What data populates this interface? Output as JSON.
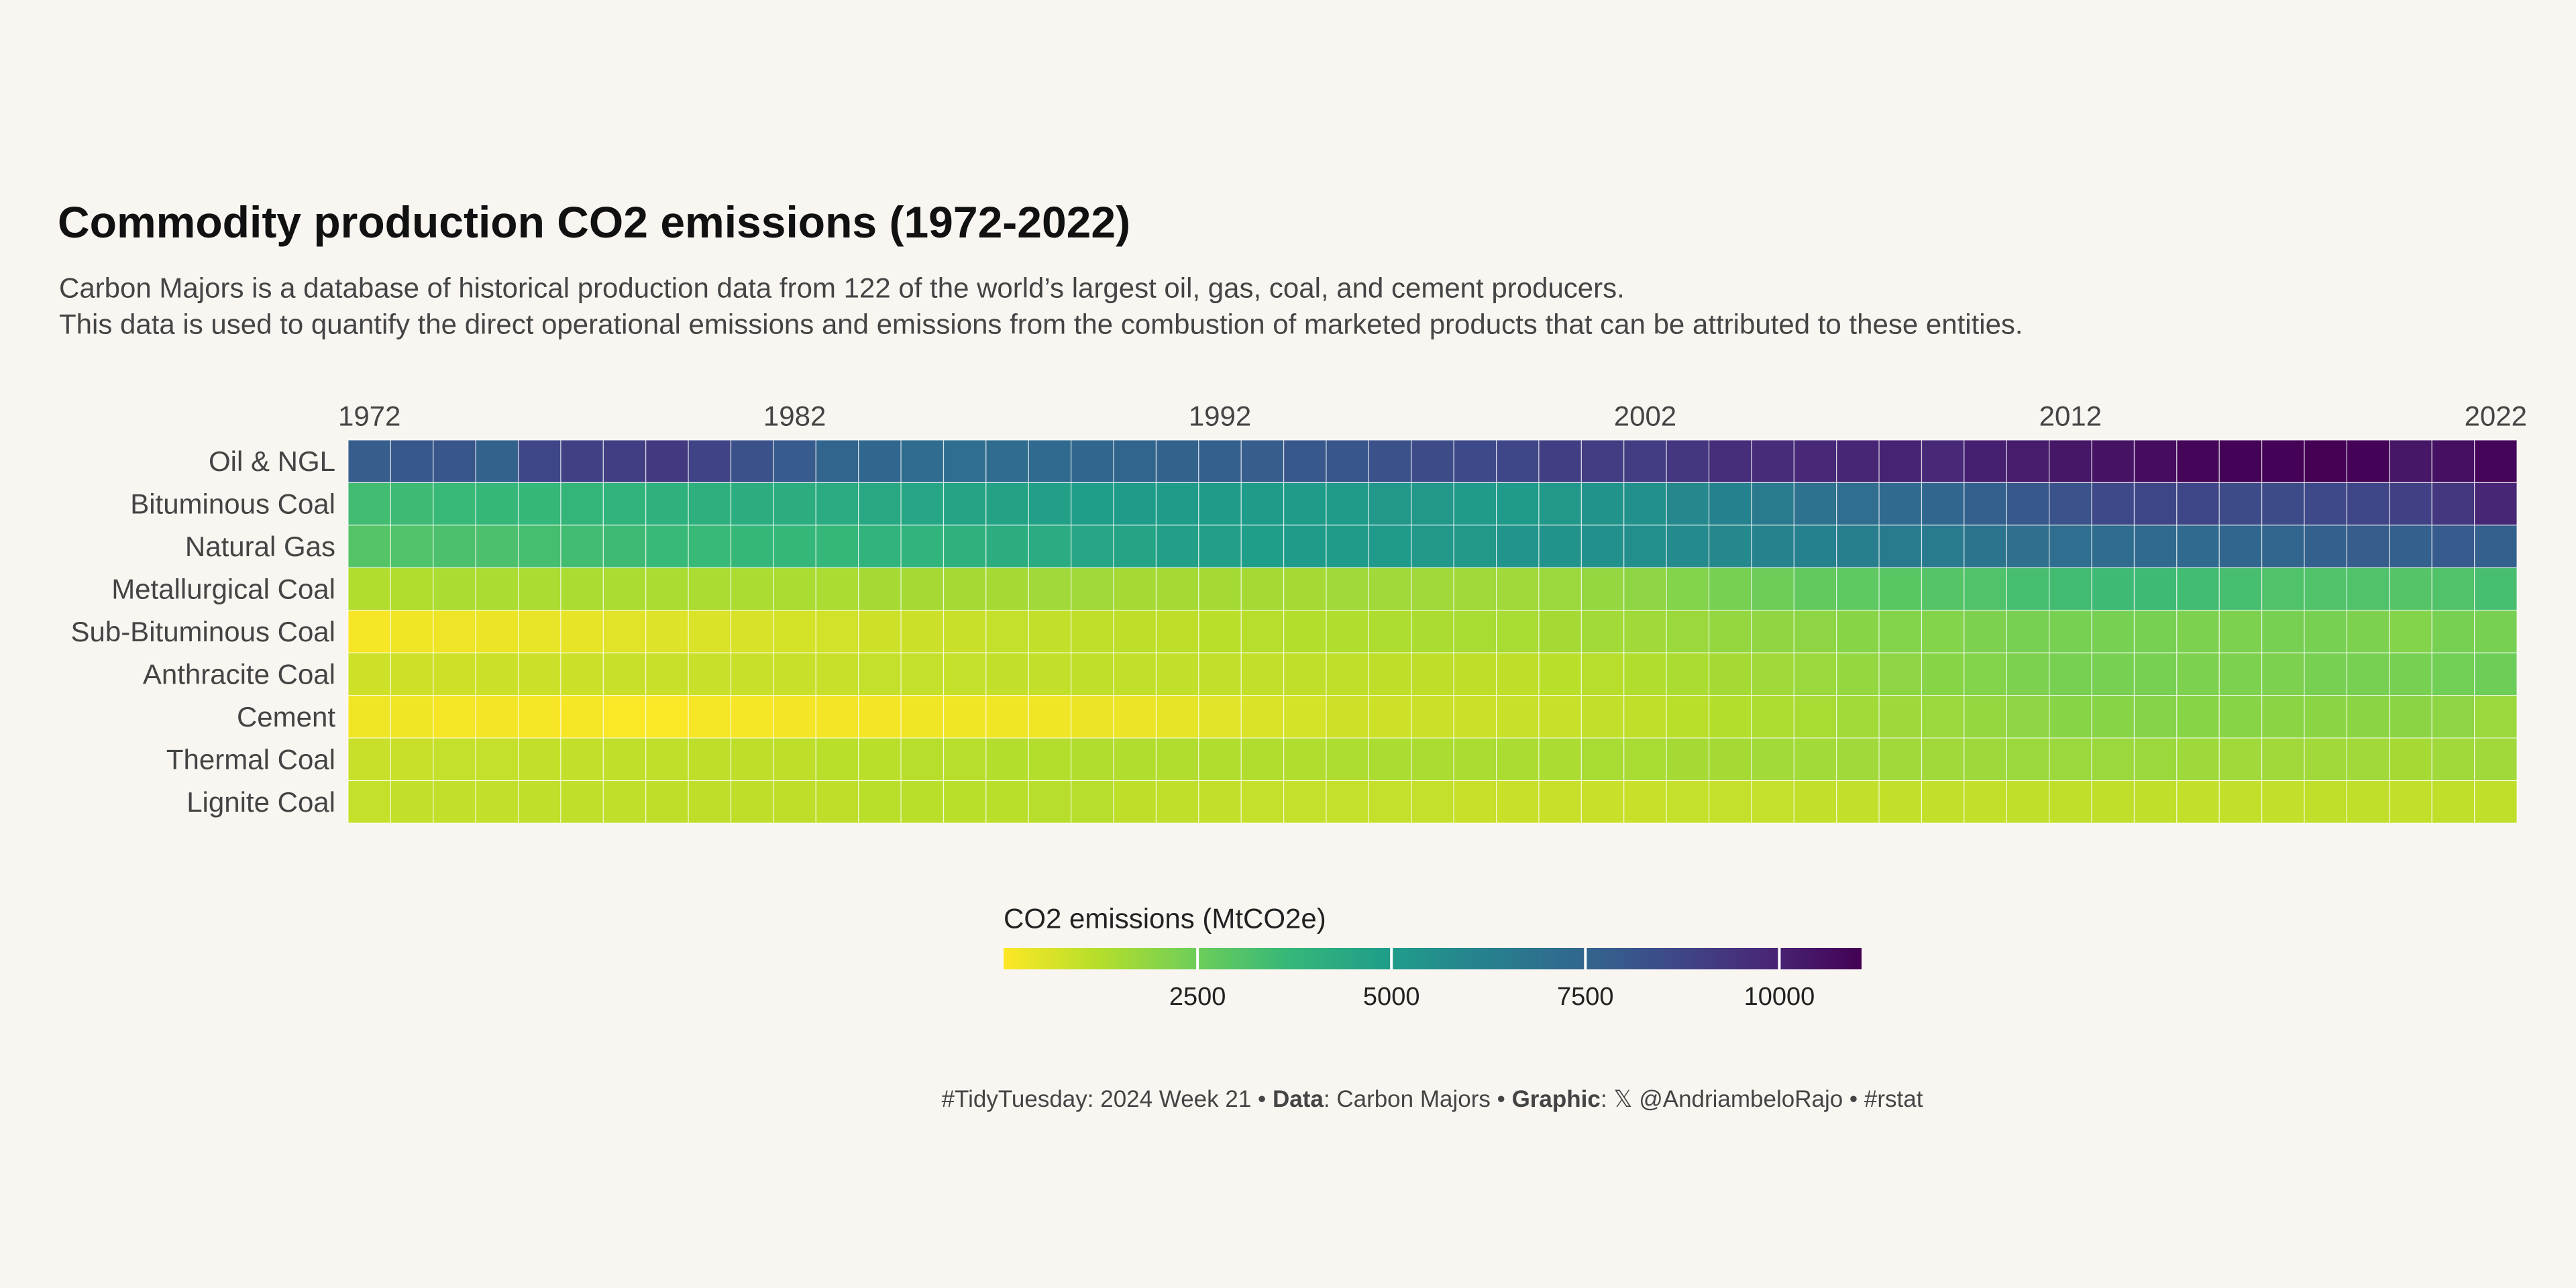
{
  "chart_data": {
    "type": "heatmap",
    "title": "Commodity production CO2 emissions (1972-2022)",
    "subtitle": [
      "Carbon Majors is a database of historical production data from 122 of the world’s largest oil, gas, coal, and cement producers.",
      "This data is used to quantify the direct operational emissions and emissions from the combustion of marketed products that can be attributed to these entities."
    ],
    "x": [
      1972,
      1973,
      1974,
      1975,
      1976,
      1977,
      1978,
      1979,
      1980,
      1981,
      1982,
      1983,
      1984,
      1985,
      1986,
      1987,
      1988,
      1989,
      1990,
      1991,
      1992,
      1993,
      1994,
      1995,
      1996,
      1997,
      1998,
      1999,
      2000,
      2001,
      2002,
      2003,
      2004,
      2005,
      2006,
      2007,
      2008,
      2009,
      2010,
      2011,
      2012,
      2013,
      2014,
      2015,
      2016,
      2017,
      2018,
      2019,
      2020,
      2021,
      2022
    ],
    "xlim": [
      1971.5,
      2022.5
    ],
    "xticks": [
      1972,
      1982,
      1992,
      2002,
      2012,
      2022
    ],
    "rows": [
      "Oil & NGL",
      "Bituminous Coal",
      "Natural Gas",
      "Metallurgical Coal",
      "Sub-Bituminous Coal",
      "Anthracite Coal",
      "Cement",
      "Thermal Coal",
      "Lignite Coal"
    ],
    "values": [
      [
        7800,
        8000,
        8100,
        7600,
        8700,
        8900,
        9000,
        9200,
        8800,
        8300,
        7900,
        7500,
        7400,
        7200,
        7100,
        7200,
        7300,
        7400,
        7500,
        7600,
        7700,
        7800,
        8000,
        8100,
        8300,
        8500,
        8600,
        8700,
        9000,
        9100,
        9100,
        9300,
        9600,
        9700,
        9800,
        9900,
        10000,
        9800,
        10100,
        10200,
        10400,
        10500,
        10700,
        10900,
        11000,
        11000,
        11050,
        11000,
        10400,
        10600,
        10900
      ],
      [
        3400,
        3500,
        3600,
        3700,
        3700,
        3800,
        3900,
        4000,
        4100,
        4200,
        4200,
        4300,
        4400,
        4500,
        4600,
        4700,
        4800,
        4900,
        5000,
        5000,
        5000,
        5000,
        5000,
        5100,
        5200,
        5200,
        5100,
        5100,
        5200,
        5400,
        5500,
        5900,
        6200,
        6500,
        6900,
        7100,
        7300,
        7400,
        7700,
        8000,
        8200,
        8600,
        8700,
        8700,
        8500,
        8500,
        8600,
        8700,
        8900,
        9300,
        9900
      ],
      [
        3000,
        3100,
        3200,
        3200,
        3300,
        3400,
        3500,
        3600,
        3600,
        3700,
        3700,
        3700,
        3900,
        3900,
        4000,
        4200,
        4300,
        4500,
        4600,
        4800,
        4800,
        4900,
        5000,
        5000,
        5100,
        5200,
        5200,
        5300,
        5400,
        5500,
        5600,
        5800,
        5900,
        6100,
        6200,
        6300,
        6500,
        6500,
        6800,
        7000,
        7100,
        7200,
        7300,
        7300,
        7400,
        7500,
        7700,
        7800,
        7700,
        7900,
        7700
      ],
      [
        1300,
        1300,
        1400,
        1400,
        1400,
        1400,
        1400,
        1400,
        1400,
        1400,
        1400,
        1400,
        1500,
        1500,
        1500,
        1500,
        1600,
        1600,
        1500,
        1500,
        1500,
        1500,
        1500,
        1600,
        1600,
        1600,
        1600,
        1600,
        1700,
        1800,
        1900,
        2100,
        2300,
        2500,
        2700,
        2800,
        2900,
        3000,
        3100,
        3300,
        3400,
        3500,
        3500,
        3400,
        3300,
        3100,
        3100,
        3100,
        3000,
        3100,
        3300
      ],
      [
        100,
        200,
        250,
        300,
        350,
        400,
        500,
        550,
        600,
        650,
        700,
        750,
        800,
        850,
        900,
        950,
        1000,
        1050,
        1100,
        1100,
        1150,
        1200,
        1250,
        1300,
        1350,
        1400,
        1450,
        1450,
        1500,
        1550,
        1600,
        1700,
        1800,
        1850,
        1900,
        2000,
        2100,
        2100,
        2200,
        2300,
        2300,
        2300,
        2300,
        2200,
        2200,
        2300,
        2300,
        2200,
        2100,
        2300,
        2300
      ],
      [
        800,
        800,
        800,
        850,
        850,
        850,
        900,
        900,
        900,
        900,
        900,
        900,
        950,
        950,
        950,
        1000,
        1000,
        1050,
        1000,
        1000,
        1000,
        1000,
        1050,
        1050,
        1100,
        1100,
        1100,
        1100,
        1150,
        1200,
        1300,
        1400,
        1500,
        1600,
        1700,
        1800,
        1900,
        2000,
        2100,
        2200,
        2300,
        2300,
        2300,
        2200,
        2200,
        2200,
        2300,
        2300,
        2300,
        2400,
        2500
      ],
      [
        200,
        200,
        100,
        150,
        100,
        100,
        50,
        50,
        100,
        100,
        150,
        150,
        150,
        200,
        200,
        200,
        200,
        300,
        300,
        400,
        500,
        600,
        700,
        800,
        800,
        850,
        850,
        900,
        900,
        1000,
        1050,
        1150,
        1250,
        1350,
        1450,
        1550,
        1650,
        1700,
        1800,
        1900,
        2000,
        2000,
        2050,
        2000,
        2000,
        1950,
        1950,
        1950,
        1950,
        1900,
        1700
      ],
      [
        900,
        900,
        950,
        950,
        1000,
        1000,
        1050,
        1050,
        1100,
        1100,
        1100,
        1150,
        1150,
        1200,
        1200,
        1250,
        1250,
        1300,
        1300,
        1300,
        1300,
        1300,
        1300,
        1350,
        1400,
        1400,
        1400,
        1400,
        1400,
        1450,
        1450,
        1500,
        1500,
        1550,
        1550,
        1600,
        1600,
        1600,
        1650,
        1700,
        1700,
        1700,
        1700,
        1650,
        1600,
        1600,
        1600,
        1600,
        1500,
        1600,
        1600
      ],
      [
        950,
        1000,
        1000,
        1000,
        1050,
        1050,
        1050,
        1100,
        1100,
        1100,
        1100,
        1100,
        1150,
        1150,
        1150,
        1150,
        1200,
        1200,
        1100,
        1050,
        1000,
        950,
        950,
        950,
        950,
        950,
        900,
        900,
        900,
        900,
        900,
        950,
        950,
        950,
        1000,
        1000,
        1000,
        1000,
        1000,
        1050,
        1050,
        1050,
        1050,
        1000,
        1000,
        1000,
        1050,
        1050,
        1000,
        1050,
        1050
      ]
    ],
    "colorscale": [
      "#fde725",
      "#b5de2b",
      "#6ece58",
      "#35b779",
      "#1f9e89",
      "#26828e",
      "#31688e",
      "#3e4989",
      "#482878",
      "#440154"
    ],
    "zlim": [
      0,
      11060
    ],
    "zticks": [
      2500,
      5000,
      7500,
      10000
    ],
    "legend_title": "CO2 emissions (MtCO2e)",
    "caption": [
      "#TidyTuesday: 2024 Week 21 • ",
      "Data",
      ": Carbon Majors • ",
      "Graphic",
      ": 𝕏 @AndriambeloRajo • #rstat"
    ]
  }
}
